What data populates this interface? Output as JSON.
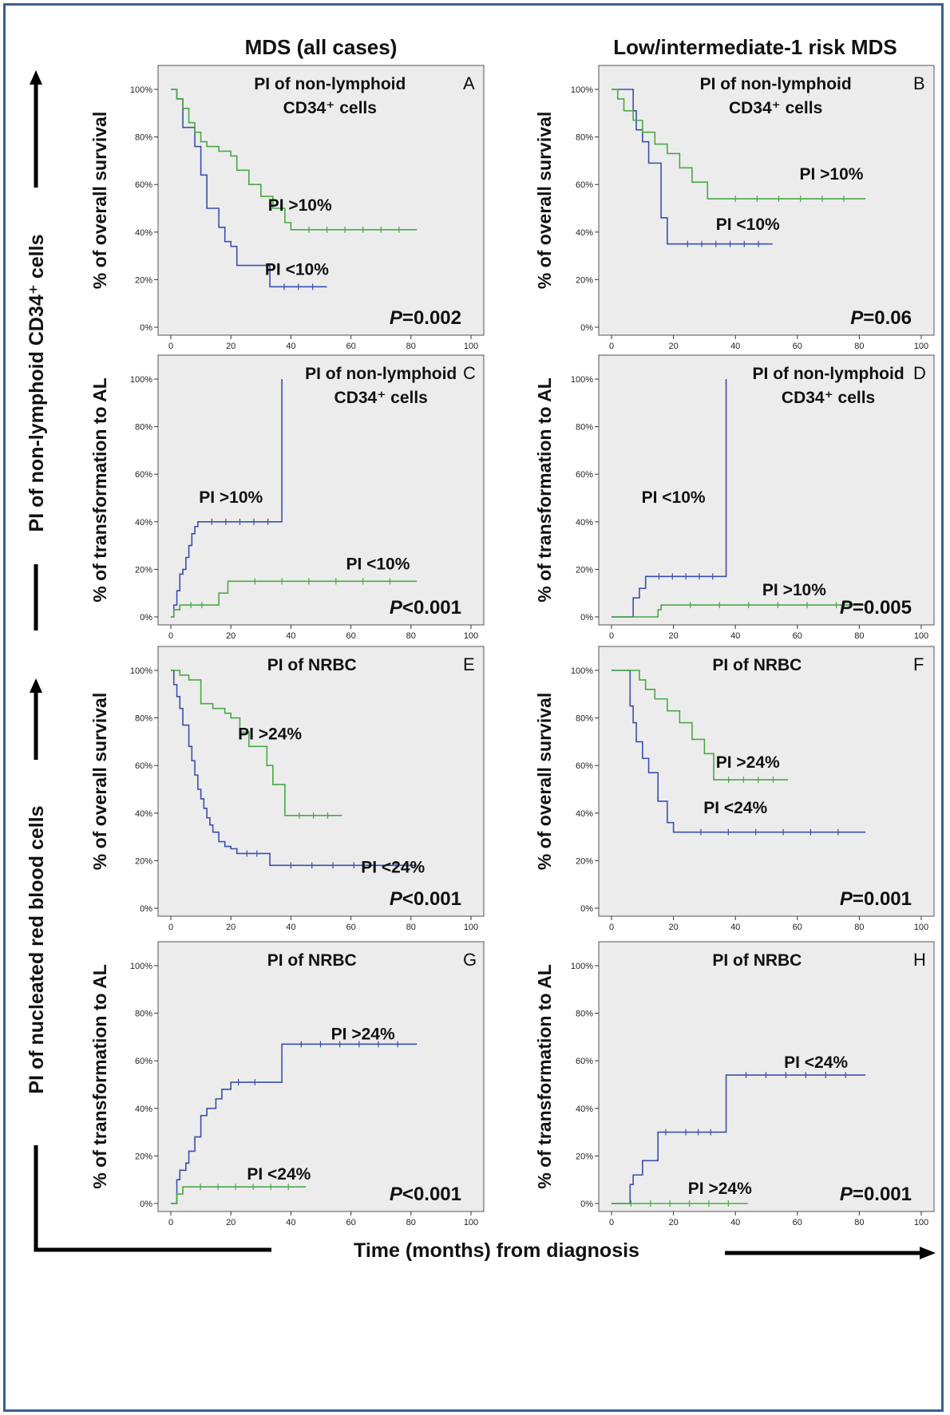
{
  "figure": {
    "left_column_title": "MDS (all cases)",
    "right_column_title": "Low/intermediate-1 risk MDS",
    "side_label_top": "PI of non-lymphoid CD34⁺ cells",
    "side_label_bottom": "PI of nucleated red blood cells",
    "x_axis_title": "Time (months) from diagnosis",
    "colors": {
      "blue": "#3a4fb0",
      "green": "#4aa845",
      "panel_bg": "#ececec"
    }
  },
  "chart_data": [
    {
      "id": "A",
      "type": "line",
      "letter": "A",
      "title_line1": "PI of non-lymphoid",
      "title_line2": "CD34⁺ cells",
      "ylabel": "% of overall survival",
      "p_label": "P",
      "p_value": "=0.002",
      "yticks": [
        "0%",
        "20%",
        "40%",
        "60%",
        "80%",
        "100%"
      ],
      "xticks": [
        "0",
        "20",
        "40",
        "60",
        "80",
        "100"
      ],
      "xlim": [
        0,
        100
      ],
      "ylim": [
        0,
        100
      ],
      "series": [
        {
          "name": "PI <10%",
          "color": "#3a4fb0",
          "x": [
            0,
            2,
            4,
            6,
            8,
            10,
            12,
            14,
            16,
            18,
            20,
            22,
            26,
            33,
            52
          ],
          "y": [
            100,
            96,
            84,
            84,
            76,
            64,
            50,
            50,
            42,
            36,
            34,
            26,
            26,
            17,
            17
          ]
        },
        {
          "name": "PI >10%",
          "color": "#4aa845",
          "x": [
            0,
            2,
            4,
            6,
            8,
            10,
            12,
            16,
            20,
            22,
            26,
            30,
            34,
            38,
            40,
            82
          ],
          "y": [
            100,
            96,
            92,
            86,
            82,
            78,
            76,
            74,
            72,
            66,
            60,
            55,
            50,
            44,
            41,
            41
          ]
        }
      ]
    },
    {
      "id": "B",
      "type": "line",
      "letter": "B",
      "title_line1": "PI of non-lymphoid",
      "title_line2": "CD34⁺ cells",
      "ylabel": "% of overall survival",
      "p_label": "P",
      "p_value": "=0.06",
      "yticks": [
        "0%",
        "20%",
        "40%",
        "60%",
        "80%",
        "100%"
      ],
      "xticks": [
        "0",
        "20",
        "40",
        "60",
        "80",
        "100"
      ],
      "xlim": [
        0,
        100
      ],
      "ylim": [
        0,
        100
      ],
      "series": [
        {
          "name": "PI <10%",
          "color": "#3a4fb0",
          "x": [
            0,
            7,
            8,
            10,
            12,
            16,
            18,
            20,
            52
          ],
          "y": [
            100,
            91,
            83,
            78,
            69,
            46,
            35,
            35,
            35
          ]
        },
        {
          "name": "PI >10%",
          "color": "#4aa845",
          "x": [
            0,
            2,
            4,
            7,
            10,
            14,
            18,
            22,
            26,
            31,
            33,
            82
          ],
          "y": [
            100,
            96,
            91,
            87,
            82,
            77,
            73,
            67,
            61,
            54,
            54,
            54
          ]
        }
      ]
    },
    {
      "id": "C",
      "type": "line",
      "letter": "C",
      "title_line1": "PI of non-lymphoid",
      "title_line2": "CD34⁺ cells",
      "ylabel": "% of transformation to AL",
      "p_label": "P",
      "p_value": "<0.001",
      "yticks": [
        "0%",
        "20%",
        "40%",
        "60%",
        "80%",
        "100%"
      ],
      "xticks": [
        "0",
        "20",
        "40",
        "60",
        "80",
        "100"
      ],
      "xlim": [
        0,
        100
      ],
      "ylim": [
        0,
        100
      ],
      "series": [
        {
          "name": "PI >10%",
          "color": "#3a4fb0",
          "x": [
            0,
            1,
            2,
            3,
            4,
            5,
            6,
            7,
            8,
            9,
            37,
            37
          ],
          "y": [
            0,
            5,
            11,
            18,
            20,
            25,
            30,
            35,
            38,
            40,
            40,
            100
          ]
        },
        {
          "name": "PI <10%",
          "color": "#4aa845",
          "x": [
            0,
            1,
            3,
            14,
            16,
            19,
            82
          ],
          "y": [
            0,
            3,
            5,
            5,
            10,
            15,
            15
          ]
        }
      ]
    },
    {
      "id": "D",
      "type": "line",
      "letter": "D",
      "title_line1": "PI of non-lymphoid",
      "title_line2": "CD34⁺ cells",
      "ylabel": "% of transformation to AL",
      "p_label": "P",
      "p_value": "=0.005",
      "yticks": [
        "0%",
        "20%",
        "40%",
        "60%",
        "80%",
        "100%"
      ],
      "xticks": [
        "0",
        "20",
        "40",
        "60",
        "80",
        "100"
      ],
      "xlim": [
        0,
        100
      ],
      "ylim": [
        0,
        100
      ],
      "series": [
        {
          "name": "PI <10%",
          "color": "#3a4fb0",
          "x": [
            0,
            7,
            9,
            11,
            37,
            37
          ],
          "y": [
            0,
            8,
            12,
            17,
            17,
            100
          ]
        },
        {
          "name": "PI >10%",
          "color": "#4aa845",
          "x": [
            0,
            15,
            16,
            82
          ],
          "y": [
            0,
            3,
            5,
            5
          ]
        }
      ]
    },
    {
      "id": "E",
      "type": "line",
      "letter": "E",
      "title_line1": "PI of NRBC",
      "title_line2": "",
      "ylabel": "% of overall survival",
      "p_label": "P",
      "p_value": "<0.001",
      "yticks": [
        "0%",
        "20%",
        "40%",
        "60%",
        "80%",
        "100%"
      ],
      "xticks": [
        "0",
        "20",
        "40",
        "60",
        "80",
        "100"
      ],
      "xlim": [
        0,
        100
      ],
      "ylim": [
        0,
        100
      ],
      "series": [
        {
          "name": "PI <24%",
          "color": "#3a4fb0",
          "x": [
            0,
            1,
            2,
            3,
            4,
            6,
            7,
            8,
            9,
            10,
            11,
            12,
            13,
            14,
            16,
            18,
            20,
            22,
            32,
            33,
            82
          ],
          "y": [
            100,
            94,
            89,
            84,
            77,
            68,
            62,
            56,
            50,
            46,
            42,
            38,
            35,
            32,
            28,
            26,
            25,
            23,
            23,
            18,
            18
          ]
        },
        {
          "name": "PI >24%",
          "color": "#4aa845",
          "x": [
            0,
            3,
            6,
            10,
            14,
            18,
            20,
            23,
            26,
            32,
            34,
            38,
            57
          ],
          "y": [
            100,
            98,
            96,
            86,
            84,
            82,
            80,
            74,
            68,
            60,
            52,
            39,
            39
          ]
        }
      ]
    },
    {
      "id": "F",
      "type": "line",
      "letter": "F",
      "title_line1": "PI of NRBC",
      "title_line2": "",
      "ylabel": "% of overall survival",
      "p_label": "P",
      "p_value": "=0.001",
      "yticks": [
        "0%",
        "20%",
        "40%",
        "60%",
        "80%",
        "100%"
      ],
      "xticks": [
        "0",
        "20",
        "40",
        "60",
        "80",
        "100"
      ],
      "xlim": [
        0,
        100
      ],
      "ylim": [
        0,
        100
      ],
      "series": [
        {
          "name": "PI <24%",
          "color": "#3a4fb0",
          "x": [
            0,
            6,
            7,
            8,
            10,
            12,
            15,
            18,
            20,
            82
          ],
          "y": [
            100,
            85,
            78,
            70,
            63,
            57,
            45,
            36,
            32,
            32
          ]
        },
        {
          "name": "PI >24%",
          "color": "#4aa845",
          "x": [
            0,
            9,
            11,
            14,
            18,
            22,
            26,
            30,
            33,
            57
          ],
          "y": [
            100,
            96,
            92,
            88,
            83,
            78,
            71,
            65,
            54,
            54
          ]
        }
      ]
    },
    {
      "id": "G",
      "type": "line",
      "letter": "G",
      "title_line1": "PI of NRBC",
      "title_line2": "",
      "ylabel": "% of transformation to AL",
      "p_label": "P",
      "p_value": "<0.001",
      "yticks": [
        "0%",
        "20%",
        "40%",
        "60%",
        "80%",
        "100%"
      ],
      "xticks": [
        "0",
        "20",
        "40",
        "60",
        "80",
        "100"
      ],
      "xlim": [
        0,
        100
      ],
      "ylim": [
        0,
        100
      ],
      "series": [
        {
          "name": "PI >24%",
          "color": "#3a4fb0",
          "x": [
            0,
            2,
            3,
            5,
            6,
            8,
            10,
            12,
            15,
            17,
            20,
            25,
            31,
            37,
            82
          ],
          "y": [
            0,
            10,
            14,
            17,
            22,
            28,
            37,
            40,
            44,
            48,
            51,
            51,
            51,
            67,
            67
          ]
        },
        {
          "name": "PI <24%",
          "color": "#4aa845",
          "x": [
            0,
            2,
            4,
            45
          ],
          "y": [
            0,
            4,
            7,
            7
          ]
        }
      ]
    },
    {
      "id": "H",
      "type": "line",
      "letter": "H",
      "title_line1": "PI of NRBC",
      "title_line2": "",
      "ylabel": "% of transformation to AL",
      "p_label": "P",
      "p_value": "=0.001",
      "yticks": [
        "0%",
        "20%",
        "40%",
        "60%",
        "80%",
        "100%"
      ],
      "xticks": [
        "0",
        "20",
        "40",
        "60",
        "80",
        "100"
      ],
      "xlim": [
        0,
        100
      ],
      "ylim": [
        0,
        100
      ],
      "series": [
        {
          "name": "PI <24%",
          "color": "#3a4fb0",
          "x": [
            0,
            6,
            7,
            10,
            15,
            20,
            36,
            37,
            82
          ],
          "y": [
            0,
            8,
            12,
            18,
            30,
            30,
            30,
            54,
            54
          ]
        },
        {
          "name": "PI >24%",
          "color": "#4aa845",
          "x": [
            0,
            44
          ],
          "y": [
            0,
            0
          ]
        }
      ]
    }
  ]
}
